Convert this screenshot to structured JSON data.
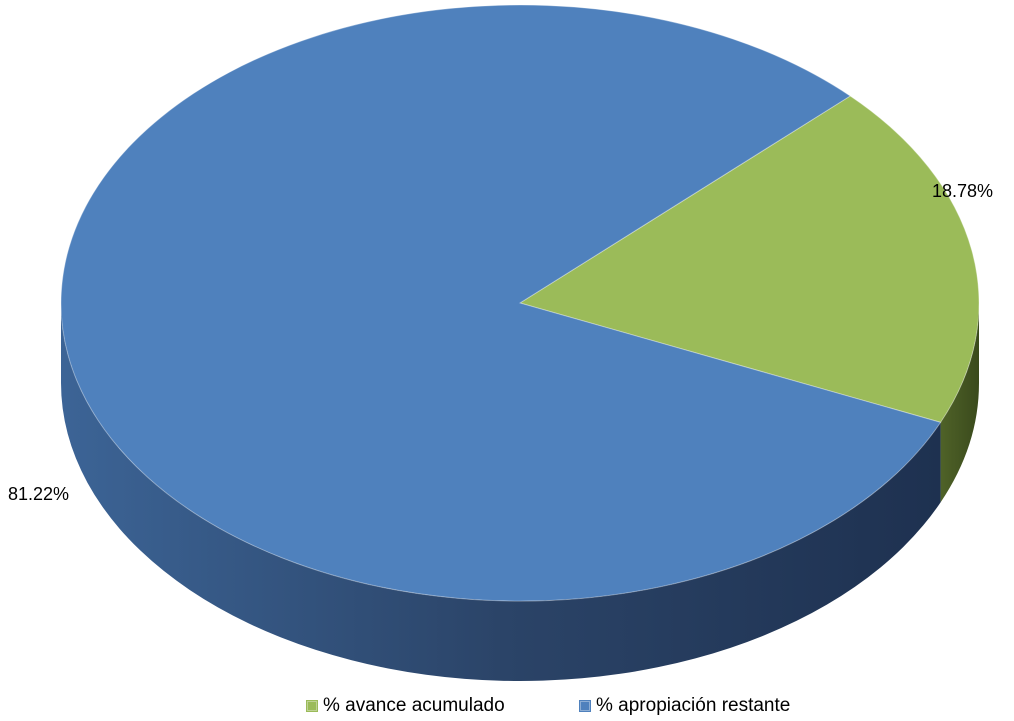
{
  "chart_data": {
    "type": "pie",
    "three_d": true,
    "start_angle_deg": -44,
    "direction": "clockwise",
    "slices": [
      {
        "name": "% avance acumulado",
        "value": 18.78,
        "label": "18.78%",
        "color": "#9BBB59",
        "side_color": "#4F6228"
      },
      {
        "name": "% apropiación restante",
        "value": 81.22,
        "label": "81.22%",
        "color": "#4F81BD",
        "side_color": "#2B4468"
      }
    ],
    "legend": {
      "position": "bottom",
      "items": [
        {
          "label": "% avance acumulado",
          "color": "#9BBB59"
        },
        {
          "label": "% apropiación restante",
          "color": "#4F81BD"
        }
      ]
    }
  }
}
